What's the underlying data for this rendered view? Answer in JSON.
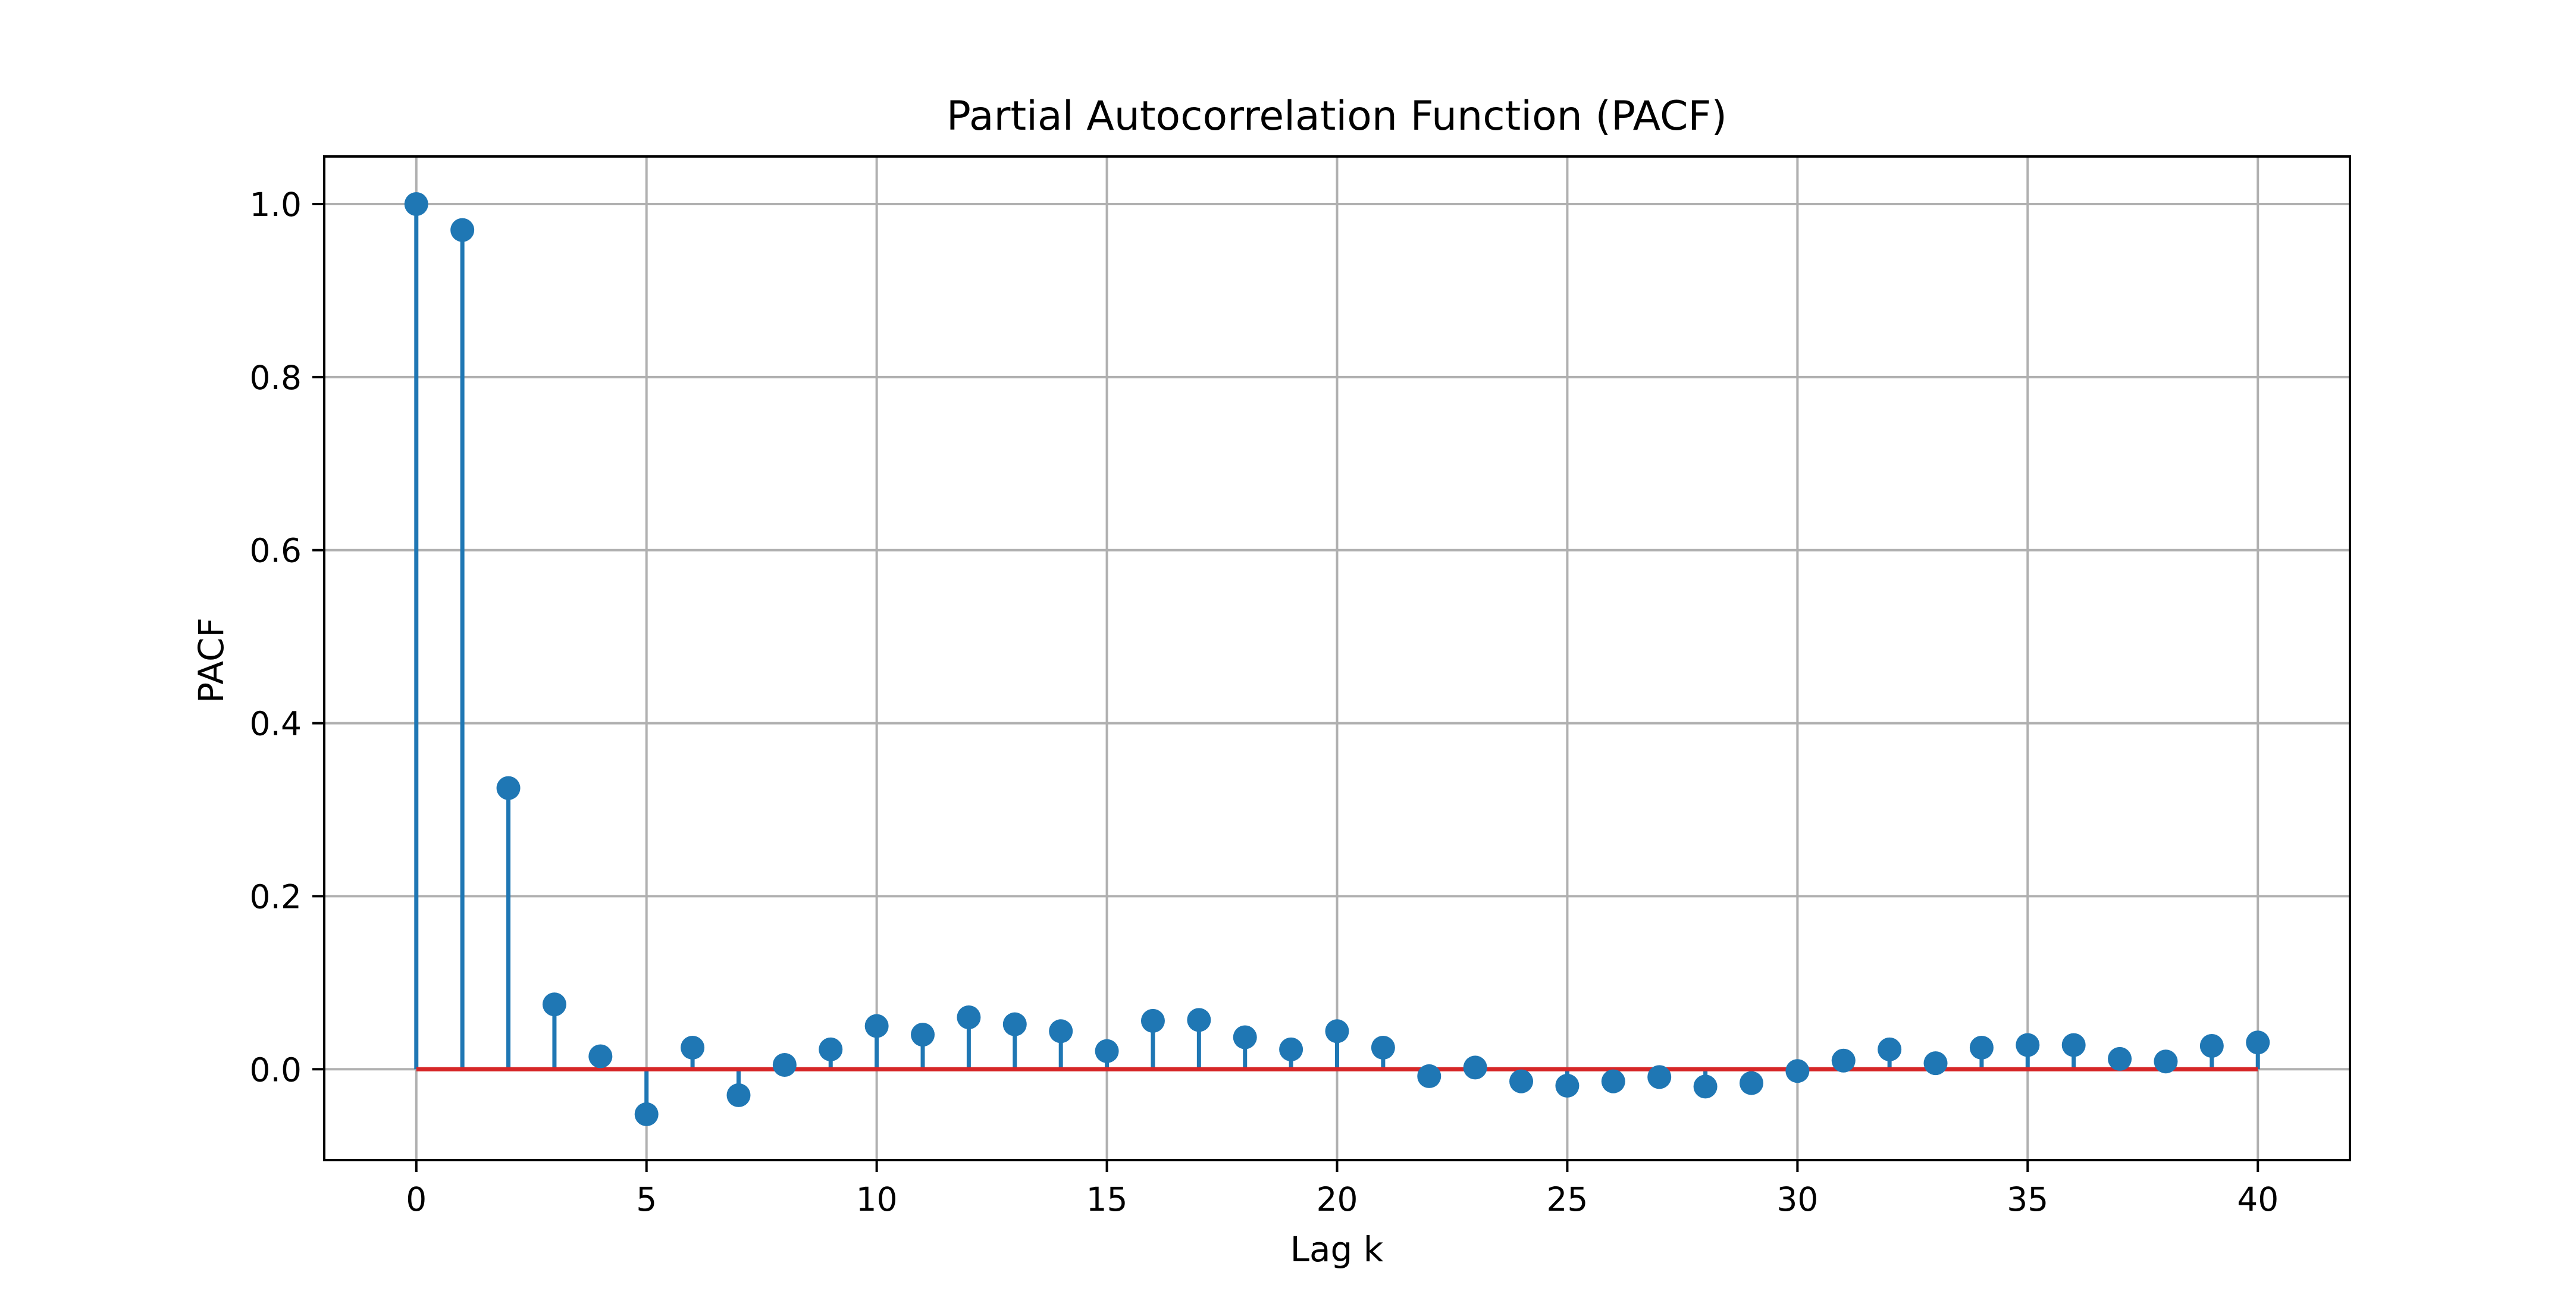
{
  "chart_data": {
    "type": "stem",
    "title": "Partial Autocorrelation Function (PACF)",
    "xlabel": "Lag k",
    "ylabel": "PACF",
    "xlim": [
      -2,
      42
    ],
    "ylim": [
      -0.105,
      1.055
    ],
    "xticks": [
      0,
      5,
      10,
      15,
      20,
      25,
      30,
      35,
      40
    ],
    "xtick_labels": [
      "0",
      "5",
      "10",
      "15",
      "20",
      "25",
      "30",
      "35",
      "40"
    ],
    "yticks": [
      0.0,
      0.2,
      0.4,
      0.6,
      0.8,
      1.0
    ],
    "ytick_labels": [
      "0.0",
      "0.2",
      "0.4",
      "0.6",
      "0.8",
      "1.0"
    ],
    "grid": true,
    "colors": {
      "stem": "#1f77b4",
      "baseline": "#d62728",
      "grid": "#b0b0b0"
    },
    "x": [
      0,
      1,
      2,
      3,
      4,
      5,
      6,
      7,
      8,
      9,
      10,
      11,
      12,
      13,
      14,
      15,
      16,
      17,
      18,
      19,
      20,
      21,
      22,
      23,
      24,
      25,
      26,
      27,
      28,
      29,
      30,
      31,
      32,
      33,
      34,
      35,
      36,
      37,
      38,
      39,
      40
    ],
    "values": [
      1.0,
      0.97,
      0.325,
      0.075,
      0.015,
      -0.052,
      0.025,
      -0.03,
      0.005,
      0.023,
      0.05,
      0.04,
      0.06,
      0.052,
      0.044,
      0.021,
      0.056,
      0.057,
      0.037,
      0.023,
      0.044,
      0.025,
      -0.008,
      0.002,
      -0.014,
      -0.019,
      -0.014,
      -0.009,
      -0.02,
      -0.016,
      -0.002,
      0.01,
      0.023,
      0.007,
      0.025,
      0.028,
      0.028,
      0.012,
      0.009,
      0.027,
      0.031
    ],
    "baseline": 0
  }
}
